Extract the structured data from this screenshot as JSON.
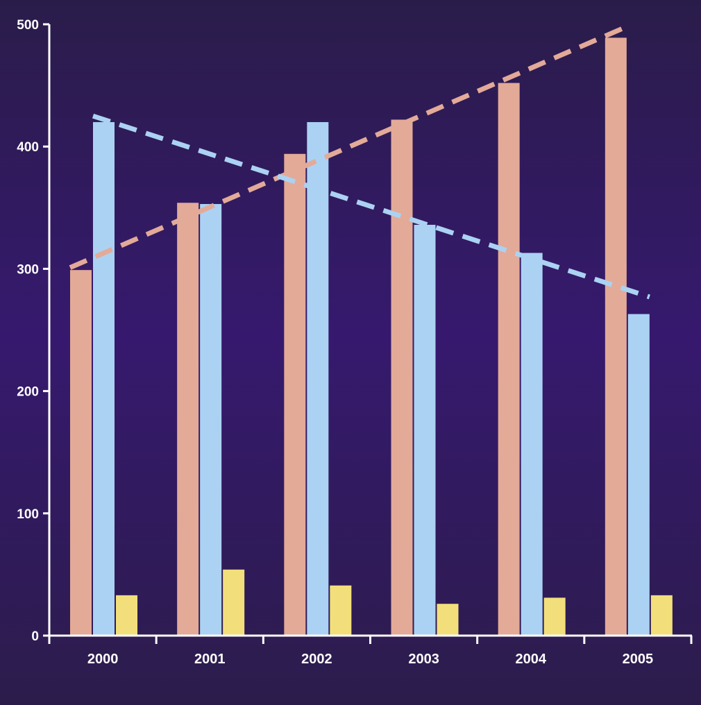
{
  "chart_data": {
    "type": "bar",
    "categories": [
      "2000",
      "2001",
      "2002",
      "2003",
      "2004",
      "2005"
    ],
    "series": [
      {
        "values": [
          299,
          354,
          394,
          422,
          452,
          489
        ],
        "color": "#e3aa98"
      },
      {
        "values": [
          420,
          353,
          420,
          336,
          313,
          263
        ],
        "color": "#abd2f2"
      },
      {
        "values": [
          33,
          54,
          41,
          26,
          31,
          33
        ],
        "color": "#f2df7b"
      }
    ],
    "trendlines": [
      {
        "of_series": 0,
        "start": 301,
        "end": 498,
        "style": "dashed",
        "color": "#e3aa98"
      },
      {
        "of_series": 1,
        "start": 425,
        "end": 277,
        "style": "dashed",
        "color": "#abd2f2"
      }
    ],
    "ylim": [
      0,
      500
    ],
    "yticks": [
      0,
      100,
      200,
      300,
      400,
      500
    ],
    "title": "",
    "xlabel": "",
    "ylabel": "",
    "grid": false,
    "legend": "none",
    "axis_color": "#ffffff"
  }
}
